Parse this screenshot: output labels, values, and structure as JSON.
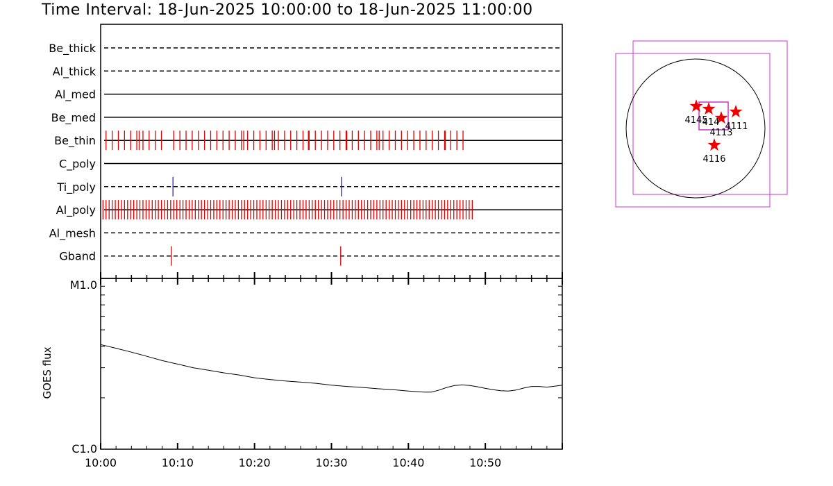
{
  "title": "Time Interval: 18-Jun-2025 10:00:00 to 18-Jun-2025 11:00:00",
  "colors": {
    "axis": "#000000",
    "filter_event": "#e00000",
    "ti_poly_event": "#2020c0",
    "fov_box": "#cc33cc",
    "star": "#ee0000"
  },
  "filters": [
    {
      "name": "Be_thick",
      "style": "dashed"
    },
    {
      "name": "Al_thick",
      "style": "dashed"
    },
    {
      "name": "Al_med",
      "style": "solid"
    },
    {
      "name": "Be_med",
      "style": "solid"
    },
    {
      "name": "Be_thin",
      "style": "solid"
    },
    {
      "name": "C_poly",
      "style": "solid"
    },
    {
      "name": "Ti_poly",
      "style": "dashed"
    },
    {
      "name": "Al_poly",
      "style": "solid"
    },
    {
      "name": "Al_mesh",
      "style": "dashed"
    },
    {
      "name": "Gband",
      "style": "dashed"
    }
  ],
  "events": {
    "Be_thin": [
      0.7,
      1.5,
      2.3,
      3.1,
      3.9,
      4.7,
      5.0,
      5.5,
      6.3,
      7.1,
      7.9,
      9.5,
      10.3,
      11.1,
      11.9,
      12.7,
      13.5,
      14.3,
      15.1,
      15.9,
      16.7,
      17.5,
      18.3,
      18.6,
      19.1,
      19.9,
      20.7,
      21.5,
      22.3,
      22.6,
      23.1,
      23.9,
      24.7,
      25.5,
      26.3,
      27.0,
      27.1,
      27.9,
      28.7,
      29.5,
      30.3,
      31.1,
      31.9,
      32.0,
      32.7,
      33.5,
      34.3,
      35.1,
      35.9,
      36.2,
      36.7,
      37.5,
      38.3,
      39.1,
      39.9,
      40.7,
      41.5,
      42.3,
      43.1,
      43.9,
      44.7,
      44.8,
      45.5,
      46.3,
      47.1
    ],
    "Ti_poly": [
      9.4,
      31.3
    ],
    "Al_poly": [
      0.3,
      0.7,
      1.1,
      1.5,
      1.9,
      2.3,
      2.7,
      3.1,
      3.5,
      3.9,
      4.3,
      4.7,
      5.1,
      5.5,
      5.9,
      6.3,
      6.7,
      7.1,
      7.5,
      7.9,
      8.3,
      8.7,
      9.1,
      9.5,
      9.9,
      10.3,
      10.7,
      11.1,
      11.5,
      11.9,
      12.3,
      12.7,
      13.1,
      13.5,
      13.9,
      14.3,
      14.7,
      15.1,
      15.5,
      15.9,
      16.3,
      16.7,
      17.1,
      17.5,
      17.9,
      18.3,
      18.7,
      19.1,
      19.5,
      19.9,
      20.3,
      20.7,
      21.1,
      21.5,
      21.9,
      22.3,
      22.7,
      23.1,
      23.5,
      23.9,
      24.3,
      24.7,
      25.1,
      25.5,
      25.9,
      26.3,
      26.7,
      27.1,
      27.5,
      27.9,
      28.3,
      28.7,
      29.1,
      29.5,
      29.9,
      30.3,
      30.7,
      31.1,
      31.5,
      31.9,
      32.3,
      32.7,
      33.1,
      33.5,
      33.9,
      34.3,
      34.7,
      35.1,
      35.5,
      35.9,
      36.3,
      36.7,
      37.1,
      37.5,
      37.9,
      38.3,
      38.7,
      39.1,
      39.5,
      39.9,
      40.3,
      40.7,
      41.1,
      41.5,
      41.9,
      42.3,
      42.7,
      43.1,
      43.5,
      43.9,
      44.3,
      44.7,
      45.1,
      45.5,
      45.9,
      46.3,
      46.7,
      47.1,
      47.5,
      47.9,
      48.3
    ],
    "Gband": [
      9.2,
      31.2
    ]
  },
  "goes_panel": {
    "ylabel": "GOES flux",
    "ymax_label": "M1.0",
    "ymin_label": "C1.0"
  },
  "xaxis": {
    "start_min": 0,
    "end_min": 60,
    "tick_labels": [
      {
        "min": 0,
        "label": "10:00"
      },
      {
        "min": 10,
        "label": "10:10"
      },
      {
        "min": 20,
        "label": "10:20"
      },
      {
        "min": 30,
        "label": "10:30"
      },
      {
        "min": 40,
        "label": "10:40"
      },
      {
        "min": 50,
        "label": "10:50"
      }
    ]
  },
  "chart_data": {
    "type": "line",
    "title": "",
    "xlabel": "",
    "ylabel": "GOES flux",
    "ylim_labels": [
      "C1.0",
      "M1.0"
    ],
    "ylim": [
      1e-06,
      1e-05
    ],
    "log_y": true,
    "x": [
      0,
      2,
      4,
      6,
      8,
      10,
      12,
      14,
      16,
      18,
      20,
      22,
      24,
      26,
      28,
      30,
      32,
      34,
      36,
      38,
      40,
      42,
      43,
      44,
      45,
      46,
      47,
      48,
      49,
      50,
      51,
      52,
      53,
      54,
      55,
      56,
      57,
      58,
      59,
      60
    ],
    "series": [
      {
        "values": [
          4.1e-06,
          3.9e-06,
          3.7e-06,
          3.5e-06,
          3.3e-06,
          3.15e-06,
          3e-06,
          2.9e-06,
          2.8e-06,
          2.72e-06,
          2.62e-06,
          2.56e-06,
          2.51e-06,
          2.47e-06,
          2.43e-06,
          2.37e-06,
          2.33e-06,
          2.3e-06,
          2.26e-06,
          2.23e-06,
          2.19e-06,
          2.16e-06,
          2.16e-06,
          2.22e-06,
          2.3e-06,
          2.36e-06,
          2.38e-06,
          2.36e-06,
          2.32e-06,
          2.27e-06,
          2.23e-06,
          2.2e-06,
          2.19e-06,
          2.22e-06,
          2.28e-06,
          2.33e-06,
          2.33e-06,
          2.31e-06,
          2.34e-06,
          2.37e-06
        ]
      }
    ]
  },
  "fov": {
    "ar_labels": [
      "4145",
      "414",
      "4113",
      "4111",
      "4116"
    ]
  }
}
